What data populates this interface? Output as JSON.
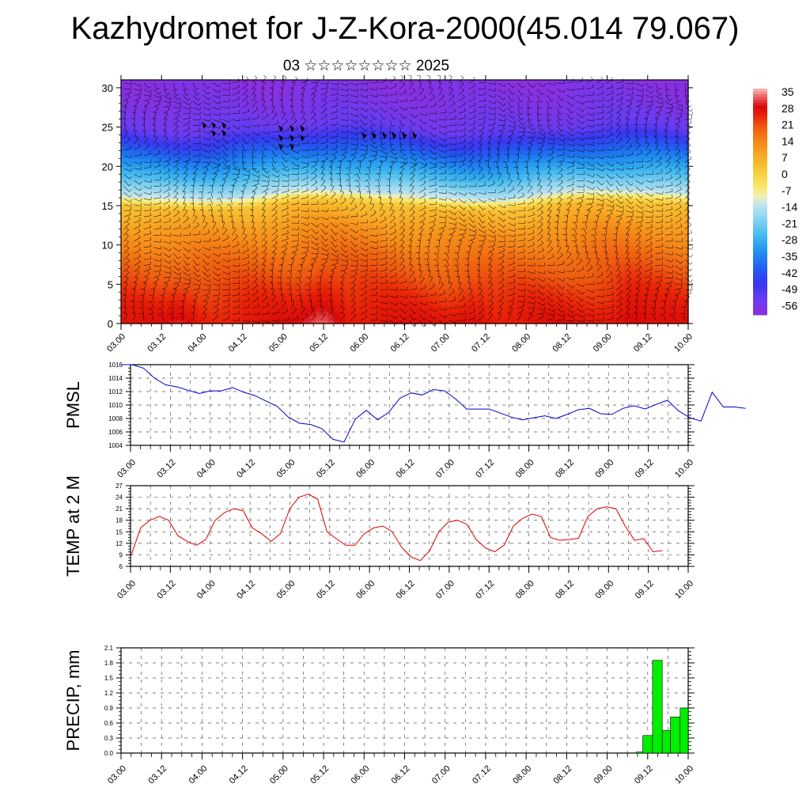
{
  "title": "Kazhydromet for J-Z-Kora-2000(45.014 79.067)",
  "subtitle": "03 ☆☆☆☆☆☆☆☆ 2025",
  "chart_data": [
    {
      "type": "heatmap",
      "name": "vertical-section",
      "x_ticks": [
        "03.00",
        "03.12",
        "04.00",
        "04.12",
        "05.00",
        "05.12",
        "06.00",
        "06.12",
        "07.00",
        "07.12",
        "08.00",
        "08.12",
        "09.00",
        "09.12",
        "10.00"
      ],
      "y_ticks": [
        0,
        5,
        10,
        15,
        20,
        25,
        30
      ],
      "ylim": [
        0,
        31
      ],
      "colorbar_labels": [
        35,
        28,
        21,
        14,
        7,
        0,
        -7,
        -14,
        -21,
        -28,
        -35,
        -42,
        -49,
        -56
      ],
      "colorbar_range": [
        -63,
        38
      ],
      "temperature_profile": [
        {
          "level": 0,
          "value": 28
        },
        {
          "level": 4,
          "value": 24
        },
        {
          "level": 8,
          "value": 19
        },
        {
          "level": 12,
          "value": 12
        },
        {
          "level": 15,
          "value": 4
        },
        {
          "level": 16.5,
          "value": -14
        },
        {
          "level": 19,
          "value": -28
        },
        {
          "level": 22,
          "value": -42
        },
        {
          "level": 25,
          "value": -56
        },
        {
          "level": 28,
          "value": -60
        },
        {
          "level": 31,
          "value": -62
        }
      ],
      "warm_anomaly_x": [
        1.5,
        5.0,
        8.7,
        12.6
      ],
      "colors": {
        "red": "#d40000",
        "orange": "#f07a10",
        "yellow": "#f8e060",
        "lightblue": "#a8d8f0",
        "blue": "#2040e0",
        "violet": "#7a2ee0"
      }
    },
    {
      "type": "line",
      "name": "pmsl",
      "ylabel": "PMSL",
      "x_ticks": [
        "03.00",
        "03.12",
        "04.00",
        "04.12",
        "05.00",
        "05.12",
        "06.00",
        "06.12",
        "07.00",
        "07.12",
        "08.00",
        "08.12",
        "09.00",
        "09.12",
        "10.00"
      ],
      "y_ticks": [
        1004,
        1006,
        1008,
        1010,
        1012,
        1014,
        1016
      ],
      "ylim": [
        1004,
        1016
      ],
      "color": "#0000cc",
      "values": [
        1016,
        1016,
        1015.5,
        1014,
        1013,
        1012.7,
        1012.2,
        1011.7,
        1012.1,
        1012.1,
        1012.6,
        1011.9,
        1011.4,
        1010.6,
        1009.8,
        1008.2,
        1007.3,
        1007.1,
        1006.5,
        1004.9,
        1004.5,
        1007.9,
        1009.2,
        1007.8,
        1008.9,
        1011,
        1011.8,
        1011.5,
        1012.3,
        1012.1,
        1010.9,
        1009.4,
        1009.4,
        1009.4,
        1008.8,
        1008.2,
        1007.8,
        1008.1,
        1008.4,
        1008,
        1008.6,
        1009.3,
        1009.5,
        1008.7,
        1008.6,
        1009.5,
        1009.9,
        1009.4,
        1010.1,
        1010.7,
        1009.1,
        1008.1,
        1007.6,
        1011.9,
        1009.7,
        1009.7,
        1009.5
      ]
    },
    {
      "type": "line",
      "name": "temp2m",
      "ylabel": "TEMP at 2 M",
      "x_ticks": [
        "03.00",
        "03.12",
        "04.00",
        "04.12",
        "05.00",
        "05.12",
        "06.00",
        "06.12",
        "07.00",
        "07.12",
        "08.00",
        "08.12",
        "09.00",
        "09.12",
        "10.00"
      ],
      "y_ticks": [
        6,
        9,
        12,
        15,
        18,
        21,
        24,
        27
      ],
      "ylim": [
        6,
        27
      ],
      "color": "#dd0000",
      "values": [
        9,
        16,
        18,
        19,
        18,
        14,
        12.5,
        11.5,
        13,
        18,
        20,
        21,
        20.5,
        16,
        14.5,
        12.5,
        14.5,
        21,
        24,
        24.8,
        23.5,
        15,
        13.2,
        11.5,
        11.5,
        14.5,
        16,
        16.5,
        15,
        11,
        8.5,
        7.5,
        10,
        15,
        17.5,
        18,
        17,
        13,
        10.8,
        9.8,
        11.5,
        16.5,
        18.5,
        19.6,
        19,
        13.5,
        12.8,
        13,
        13.3,
        19,
        21,
        21.5,
        21,
        16.5,
        12.8,
        13.2,
        9.8,
        10.1
      ]
    },
    {
      "type": "bar",
      "name": "precip",
      "ylabel": "PRECIP, mm",
      "x_ticks": [
        "03.00",
        "03.12",
        "04.00",
        "04.12",
        "05.00",
        "05.12",
        "06.00",
        "06.12",
        "07.00",
        "07.12",
        "08.00",
        "08.12",
        "09.00",
        "09.12",
        "10.00"
      ],
      "y_ticks": [
        "0.0",
        "0.3",
        "0.6",
        "0.9",
        "1.2",
        "1.5",
        "1.8",
        "2.1"
      ],
      "ylim": [
        0,
        2.1
      ],
      "color": "#00ee00",
      "bars": [
        {
          "x_start": 12.72,
          "x_end": 12.88,
          "value": 0.02
        },
        {
          "x_start": 12.88,
          "x_end": 13.12,
          "value": 0.35
        },
        {
          "x_start": 13.12,
          "x_end": 13.36,
          "value": 1.85
        },
        {
          "x_start": 13.36,
          "x_end": 13.56,
          "value": 0.45
        },
        {
          "x_start": 13.56,
          "x_end": 13.8,
          "value": 0.72
        },
        {
          "x_start": 13.8,
          "x_end": 14.0,
          "value": 0.9
        }
      ]
    }
  ]
}
